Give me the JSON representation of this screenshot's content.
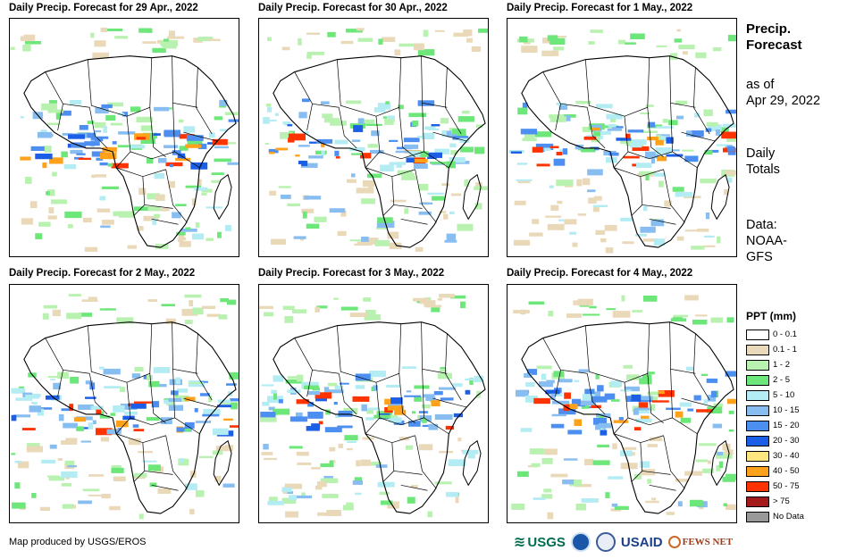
{
  "panels": [
    {
      "title": "Daily Precip. Forecast for 29 Apr., 2022"
    },
    {
      "title": "Daily Precip. Forecast for 30 Apr., 2022"
    },
    {
      "title": "Daily Precip. Forecast for 1 May., 2022"
    },
    {
      "title": "Daily Precip. Forecast for 2 May., 2022"
    },
    {
      "title": "Daily Precip. Forecast for 3 May., 2022"
    },
    {
      "title": "Daily Precip. Forecast for 4 May., 2022"
    }
  ],
  "info": {
    "heading_line1": "Precip.",
    "heading_line2": "Forecast",
    "asof_line1": "as of",
    "asof_line2": "Apr 29, 2022",
    "totals_line1": "Daily",
    "totals_line2": "Totals",
    "data_line1": "Data:",
    "data_line2": "NOAA-",
    "data_line3": "GFS"
  },
  "legend": {
    "title": "PPT (mm)",
    "items": [
      {
        "label": "0 - 0.1",
        "color": "#ffffff"
      },
      {
        "label": "0.1 - 1",
        "color": "#ead9b9"
      },
      {
        "label": "1 - 2",
        "color": "#b9f2b0"
      },
      {
        "label": "2 - 5",
        "color": "#6de67a"
      },
      {
        "label": "5 - 10",
        "color": "#b3ecf3"
      },
      {
        "label": "10 - 15",
        "color": "#87bdf0"
      },
      {
        "label": "15 - 20",
        "color": "#4d8ff0"
      },
      {
        "label": "20 - 30",
        "color": "#1c5ee6"
      },
      {
        "label": "30 - 40",
        "color": "#ffe680"
      },
      {
        "label": "40 - 50",
        "color": "#ffa21a"
      },
      {
        "label": "50 - 75",
        "color": "#ff3300"
      },
      {
        "label": "> 75",
        "color": "#a31a1a"
      },
      {
        "label": "No Data",
        "color": "#999999"
      }
    ]
  },
  "credit": "Map produced by USGS/EROS",
  "logos": {
    "usgs": "USGS",
    "usaid": "USAID",
    "fewsnet": "FEWS NET"
  }
}
